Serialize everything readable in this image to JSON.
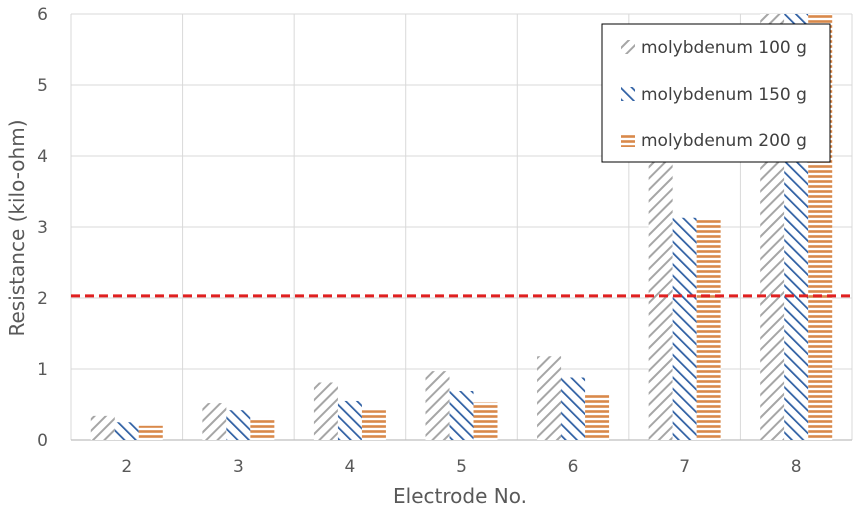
{
  "chart_data": {
    "type": "bar",
    "title": "",
    "xlabel": "Electrode No.",
    "ylabel": "Resistance (kilo-ohm)",
    "ylim": [
      0,
      6
    ],
    "yticks": [
      "0",
      "1",
      "2",
      "3",
      "4",
      "5",
      "6"
    ],
    "grid": true,
    "legend_position": "top-right",
    "categories": [
      "2",
      "3",
      "4",
      "5",
      "6",
      "7",
      "8"
    ],
    "series": [
      {
        "name": "molybdenum 100 g",
        "values": [
          0.34,
          0.52,
          0.81,
          0.97,
          1.18,
          4.0,
          6.0
        ],
        "color": "#a6a6a6",
        "pattern": "diagonal-up"
      },
      {
        "name": "molybdenum 150 g",
        "values": [
          0.25,
          0.42,
          0.55,
          0.69,
          0.88,
          3.13,
          6.0
        ],
        "color": "#2e5fa3",
        "pattern": "diagonal-down"
      },
      {
        "name": "molybdenum 200 g",
        "values": [
          0.2,
          0.31,
          0.42,
          0.53,
          0.65,
          3.1,
          6.0
        ],
        "color": "#d9894a",
        "pattern": "horizontal"
      }
    ],
    "reference_line": {
      "value": 2.03,
      "color": "#e02020",
      "style": "dashed"
    }
  }
}
